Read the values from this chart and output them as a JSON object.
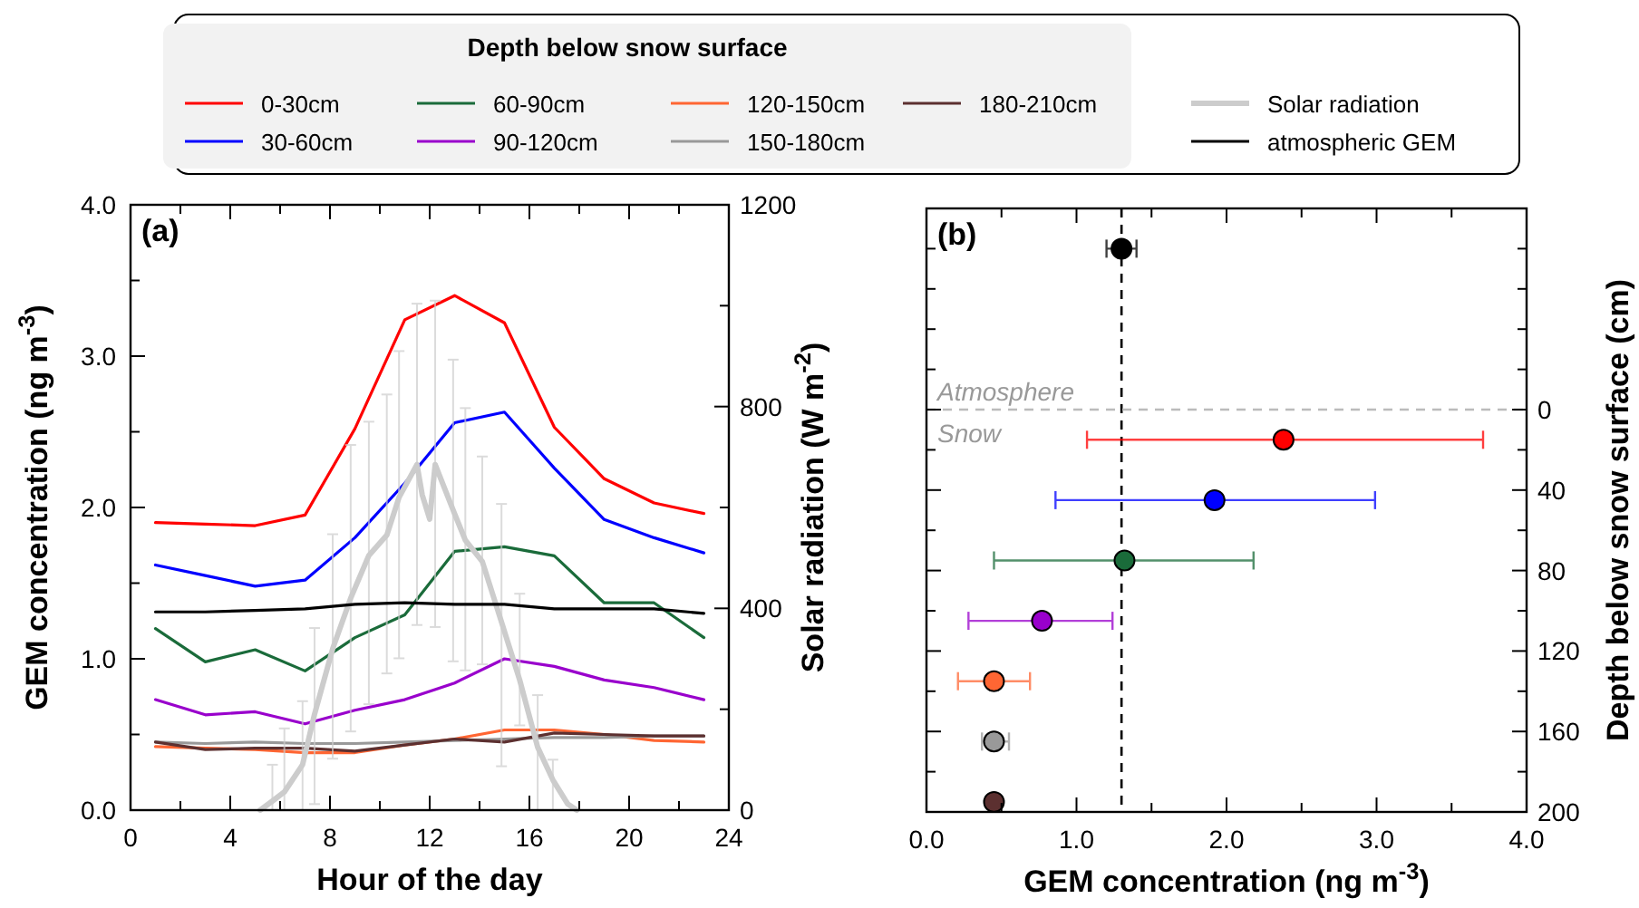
{
  "chart_data": [
    {
      "type": "line",
      "title": "(a)",
      "xlabel": "Hour of the day",
      "ylabel": "GEM concentration (ng m$^{-3}$)",
      "y2label": "Solar radiation (W m$^{-2}$)",
      "legend": "top",
      "legend_title": "Depth below snow surface",
      "x": [
        1,
        3,
        5,
        7,
        9,
        11,
        13,
        15,
        17,
        19,
        21,
        23
      ],
      "xlim": [
        0,
        24
      ],
      "xticks": [
        0,
        {
          "value": 2,
          "label": null
        },
        4,
        {
          "value": 6,
          "label": null
        },
        8,
        {
          "value": 10,
          "label": null
        },
        12,
        {
          "value": 14,
          "label": null
        },
        16,
        {
          "value": 18,
          "label": null
        },
        20,
        {
          "value": 22,
          "label": null
        },
        24
      ],
      "ylim": [
        0,
        4
      ],
      "yticks": [
        {
          "value": 0,
          "label": "0.0"
        },
        {
          "value": 0.5,
          "label": null
        },
        {
          "value": 1,
          "label": "1.0"
        },
        {
          "value": 1.5,
          "label": null
        },
        {
          "value": 2,
          "label": "2.0"
        },
        {
          "value": 2.5,
          "label": null
        },
        {
          "value": 3,
          "label": "3.0"
        },
        {
          "value": 3.5,
          "label": null
        },
        {
          "value": 4,
          "label": "4.0"
        }
      ],
      "y2lim": [
        0,
        1200
      ],
      "y2ticks": [
        0,
        {
          "value": 200,
          "label": null
        },
        400,
        {
          "value": 600,
          "label": null
        },
        800,
        {
          "value": 1000,
          "label": null
        },
        1200
      ],
      "series": [
        {
          "name": "0-30cm",
          "color": "#ff0000",
          "values": [
            1.9,
            1.89,
            1.88,
            1.95,
            2.52,
            3.24,
            3.4,
            3.22,
            2.53,
            2.19,
            2.03,
            1.96
          ]
        },
        {
          "name": "30-60cm",
          "color": "#0000ff",
          "values": [
            1.62,
            1.55,
            1.48,
            1.52,
            1.8,
            2.16,
            2.56,
            2.63,
            2.26,
            1.92,
            1.8,
            1.7
          ]
        },
        {
          "name": "60-90cm",
          "color": "#1a6b3a",
          "values": [
            1.2,
            0.98,
            1.06,
            0.92,
            1.14,
            1.29,
            1.71,
            1.74,
            1.68,
            1.37,
            1.37,
            1.14
          ]
        },
        {
          "name": "90-120cm",
          "color": "#9900cc",
          "values": [
            0.73,
            0.63,
            0.65,
            0.57,
            0.66,
            0.73,
            0.84,
            1.0,
            0.95,
            0.86,
            0.81,
            0.73
          ]
        },
        {
          "name": "120-150cm",
          "color": "#ff6633",
          "values": [
            0.42,
            0.41,
            0.4,
            0.38,
            0.38,
            0.43,
            0.47,
            0.53,
            0.53,
            0.5,
            0.46,
            0.45
          ]
        },
        {
          "name": "150-180cm",
          "color": "#999999",
          "values": [
            0.45,
            0.44,
            0.45,
            0.44,
            0.44,
            0.45,
            0.46,
            0.47,
            0.48,
            0.48,
            0.49,
            0.49
          ]
        },
        {
          "name": "180-210cm",
          "color": "#5c3030",
          "values": [
            0.45,
            0.4,
            0.41,
            0.41,
            0.39,
            0.43,
            0.47,
            0.45,
            0.51,
            0.5,
            0.49,
            0.49
          ]
        },
        {
          "name": "Solar radiation",
          "color": "#cccccc",
          "axis": "y2",
          "x": [
            5.2,
            5.69,
            6.17,
            6.9,
            7.38,
            8.11,
            8.83,
            9.56,
            10.28,
            10.77,
            11.49,
            11.7,
            12.0,
            12.22,
            12.94,
            13.43,
            14.11,
            14.88,
            15.61,
            16.33,
            16.94,
            17.54,
            17.9
          ],
          "values": [
            0,
            18,
            36,
            90,
            190,
            320,
            420,
            505,
            545,
            620,
            685,
            625,
            577,
            685,
            595,
            535,
            493,
            373,
            258,
            125,
            60,
            12,
            0
          ],
          "errors": [
            null,
            [
              0,
              90
            ],
            [
              0,
              162
            ],
            [
              0,
              216
            ],
            [
              12,
              361
            ],
            [
              102,
              547
            ],
            [
              156,
              724
            ],
            [
              210,
              770
            ],
            [
              271,
              824
            ],
            [
              301,
              910
            ],
            [
              367,
              1004
            ],
            null,
            null,
            [
              363,
              1010
            ],
            [
              295,
              893
            ],
            [
              277,
              797
            ],
            [
              289,
              701
            ],
            [
              87,
              607
            ],
            [
              168,
              429
            ],
            [
              0,
              228
            ],
            [
              0,
              100
            ],
            null,
            null
          ]
        },
        {
          "name": "atmospheric GEM",
          "color": "#000000",
          "values": [
            1.31,
            1.31,
            1.32,
            1.33,
            1.36,
            1.37,
            1.36,
            1.36,
            1.33,
            1.33,
            1.33,
            1.3
          ]
        }
      ]
    },
    {
      "type": "scatter",
      "title": "(b)",
      "xlabel": "GEM concentration (ng m$^{-3}$)",
      "y2label": "Depth below snow surface (cm)",
      "marker": "circle",
      "xlim": [
        0,
        4
      ],
      "xticks": [
        {
          "value": 0,
          "label": "0.0"
        },
        {
          "value": 0.5,
          "label": null
        },
        {
          "value": 1,
          "label": "1.0"
        },
        {
          "value": 1.5,
          "label": null
        },
        {
          "value": 2,
          "label": "2.0"
        },
        {
          "value": 2.5,
          "label": null
        },
        {
          "value": 3,
          "label": "3.0"
        },
        {
          "value": 3.5,
          "label": null
        },
        {
          "value": 4,
          "label": "4.0"
        }
      ],
      "y2lim": [
        200,
        -100
      ],
      "y2ticks": [
        {
          "value": -80,
          "label": null
        },
        {
          "value": -60,
          "label": null
        },
        {
          "value": -40,
          "label": null
        },
        {
          "value": -20,
          "label": null
        },
        0,
        {
          "value": 20,
          "label": null
        },
        40,
        {
          "value": 60,
          "label": null
        },
        80,
        {
          "value": 100,
          "label": null
        },
        120,
        {
          "value": 140,
          "label": null
        },
        160,
        {
          "value": 180,
          "label": null
        },
        200
      ],
      "ref_lines": [
        {
          "axis": "x",
          "value": 1.3,
          "color": "#000000",
          "line_style": "dashed"
        },
        {
          "axis": "y2",
          "value": 0,
          "color": "#bbbbbb",
          "line_style": "dashed"
        }
      ],
      "annotations": [
        "Atmosphere",
        "Snow"
      ],
      "series": [
        {
          "axis": "y2",
          "x": [
            1.3,
            2.38,
            1.92,
            1.32,
            0.77,
            0.45,
            0.45,
            0.45
          ],
          "values": [
            -80,
            15,
            45,
            75,
            105,
            135,
            165,
            195
          ],
          "colors": [
            "#000000",
            "#ff0000",
            "#0000ff",
            "#1a6b3a",
            "#9900cc",
            "#ff6633",
            "#999999",
            "#5c3030"
          ],
          "xerrors": [
            [
              1.2,
              1.4
            ],
            [
              1.07,
              3.71
            ],
            [
              0.86,
              2.99
            ],
            [
              0.45,
              2.18
            ],
            [
              0.28,
              1.24
            ],
            [
              0.21,
              0.69
            ],
            [
              0.37,
              0.55
            ],
            null
          ]
        }
      ]
    }
  ]
}
